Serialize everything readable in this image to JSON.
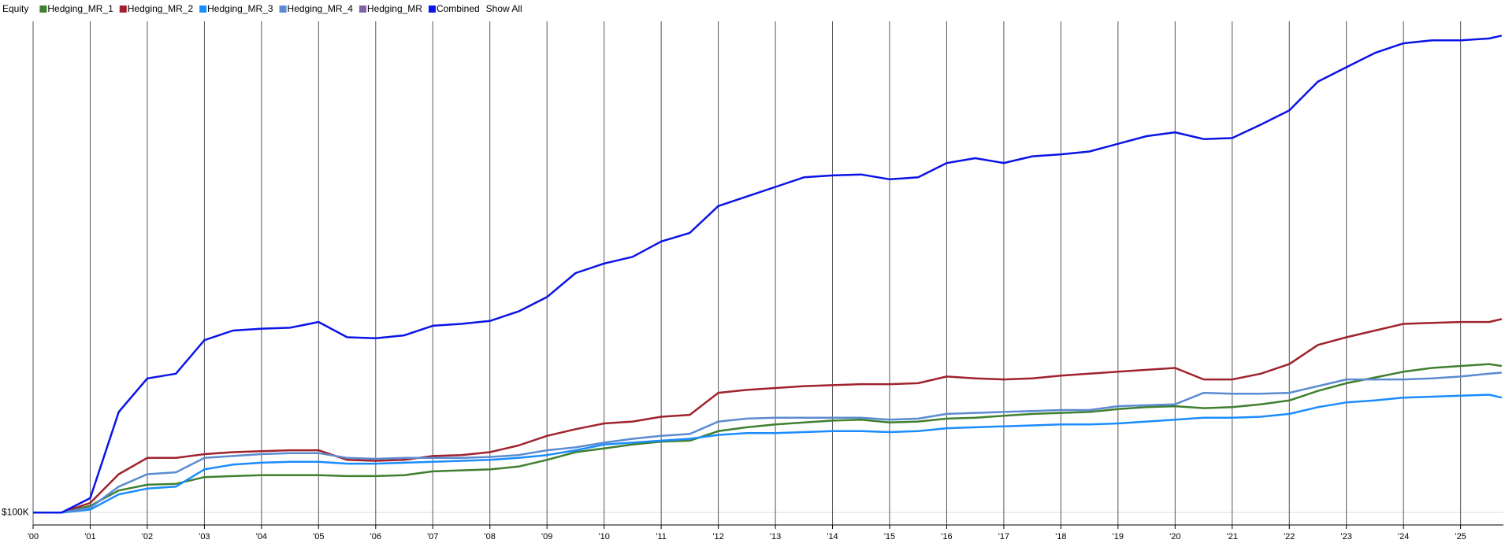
{
  "chart_data": {
    "type": "line",
    "title": "Equity",
    "show_all": "Show All",
    "x": [
      2000,
      2000.5,
      2001,
      2001.5,
      2002,
      2002.5,
      2003,
      2003.5,
      2004,
      2004.5,
      2005,
      2005.5,
      2006,
      2006.5,
      2007,
      2007.5,
      2008,
      2008.5,
      2009,
      2009.5,
      2010,
      2010.5,
      2011,
      2011.5,
      2012,
      2012.5,
      2013,
      2013.5,
      2014,
      2014.5,
      2015,
      2015.5,
      2016,
      2016.5,
      2017,
      2017.5,
      2018,
      2018.5,
      2019,
      2019.5,
      2020,
      2020.5,
      2021,
      2021.5,
      2022,
      2022.5,
      2023,
      2023.5,
      2024,
      2024.5,
      2025,
      2025.5,
      2025.72
    ],
    "series": [
      {
        "name": "Hedging_MR_1",
        "color": "#3f7f2f",
        "values": [
          100000,
          100000,
          114000,
          146000,
          158000,
          160000,
          174000,
          176000,
          178000,
          178000,
          178000,
          176000,
          176000,
          178000,
          186000,
          188000,
          190000,
          196000,
          210000,
          226000,
          234000,
          242000,
          248000,
          250000,
          270000,
          278000,
          284000,
          288000,
          292000,
          294000,
          288000,
          290000,
          296000,
          298000,
          302000,
          306000,
          308000,
          310000,
          316000,
          320000,
          322000,
          318000,
          320000,
          326000,
          334000,
          354000,
          370000,
          382000,
          394000,
          402000,
          406000,
          410000,
          406000
        ]
      },
      {
        "name": "Hedging_MR_2",
        "color": "#a0222c",
        "values": [
          100000,
          100000,
          120000,
          180000,
          214000,
          214000,
          222000,
          226000,
          228000,
          230000,
          230000,
          210000,
          208000,
          210000,
          218000,
          220000,
          226000,
          240000,
          260000,
          274000,
          286000,
          290000,
          300000,
          304000,
          350000,
          356000,
          360000,
          364000,
          366000,
          368000,
          368000,
          370000,
          384000,
          380000,
          378000,
          380000,
          386000,
          390000,
          394000,
          398000,
          402000,
          378000,
          378000,
          390000,
          410000,
          450000,
          466000,
          480000,
          494000,
          496000,
          498000,
          498000,
          504000
        ]
      },
      {
        "name": "Hedging_MR_3",
        "color": "#1a8cff",
        "values": [
          100000,
          100000,
          106000,
          138000,
          150000,
          154000,
          190000,
          200000,
          204000,
          206000,
          206000,
          202000,
          202000,
          204000,
          206000,
          208000,
          210000,
          214000,
          220000,
          230000,
          242000,
          246000,
          250000,
          254000,
          262000,
          266000,
          266000,
          268000,
          270000,
          270000,
          268000,
          270000,
          276000,
          278000,
          280000,
          282000,
          284000,
          284000,
          286000,
          290000,
          294000,
          298000,
          298000,
          300000,
          306000,
          320000,
          330000,
          334000,
          340000,
          342000,
          344000,
          346000,
          340000
        ]
      },
      {
        "name": "Hedging_MR_4",
        "color": "#5b8bd0",
        "values": [
          100000,
          100000,
          110000,
          154000,
          180000,
          184000,
          214000,
          218000,
          222000,
          224000,
          224000,
          214000,
          212000,
          214000,
          214000,
          214000,
          216000,
          220000,
          230000,
          236000,
          246000,
          254000,
          260000,
          264000,
          290000,
          296000,
          298000,
          298000,
          298000,
          298000,
          294000,
          296000,
          306000,
          308000,
          310000,
          312000,
          314000,
          314000,
          322000,
          324000,
          326000,
          350000,
          348000,
          348000,
          350000,
          364000,
          378000,
          378000,
          378000,
          380000,
          384000,
          390000,
          392000
        ]
      },
      {
        "name": "Hedging_MR",
        "color": "#7f62a8",
        "visible": false
      },
      {
        "name": "Combined",
        "color": "#0a14e6",
        "values": [
          100000,
          100000,
          130000,
          310000,
          380000,
          390000,
          460000,
          480000,
          484000,
          486000,
          498000,
          466000,
          464000,
          470000,
          490000,
          494000,
          500000,
          520000,
          550000,
          600000,
          620000,
          634000,
          666000,
          684000,
          740000,
          760000,
          780000,
          800000,
          804000,
          806000,
          796000,
          800000,
          830000,
          840000,
          830000,
          844000,
          848000,
          854000,
          870000,
          886000,
          894000,
          880000,
          882000,
          910000,
          940000,
          1000000,
          1030000,
          1060000,
          1080000,
          1086000,
          1086000,
          1090000,
          1096000
        ]
      }
    ],
    "xlim": [
      2000,
      2025.75
    ],
    "xticks": [
      {
        "value": 2000,
        "label": "'00"
      },
      {
        "value": 2001,
        "label": "'01"
      },
      {
        "value": 2002,
        "label": "'02"
      },
      {
        "value": 2003,
        "label": "'03"
      },
      {
        "value": 2004,
        "label": "'04"
      },
      {
        "value": 2005,
        "label": "'05"
      },
      {
        "value": 2006,
        "label": "'06"
      },
      {
        "value": 2007,
        "label": "'07"
      },
      {
        "value": 2008,
        "label": "'08"
      },
      {
        "value": 2009,
        "label": "'09"
      },
      {
        "value": 2010,
        "label": "'10"
      },
      {
        "value": 2011,
        "label": "'11"
      },
      {
        "value": 2012,
        "label": "'12"
      },
      {
        "value": 2013,
        "label": "'13"
      },
      {
        "value": 2014,
        "label": "'14"
      },
      {
        "value": 2015,
        "label": "'15"
      },
      {
        "value": 2016,
        "label": "'16"
      },
      {
        "value": 2017,
        "label": "'17"
      },
      {
        "value": 2018,
        "label": "'18"
      },
      {
        "value": 2019,
        "label": "'19"
      },
      {
        "value": 2020,
        "label": "'20"
      },
      {
        "value": 2021,
        "label": "'21"
      },
      {
        "value": 2022,
        "label": "'22"
      },
      {
        "value": 2023,
        "label": "'23"
      },
      {
        "value": 2024,
        "label": "'24"
      },
      {
        "value": 2025,
        "label": "'25"
      }
    ],
    "ylim": [
      74000,
      1126000
    ],
    "yticks": [
      {
        "value": 100000,
        "label": "$100K"
      }
    ],
    "grid": true
  }
}
